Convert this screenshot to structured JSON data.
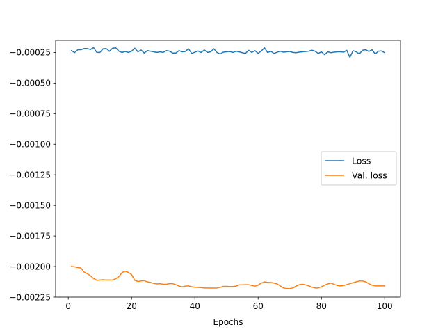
{
  "chart_data": {
    "type": "line",
    "title": "",
    "xlabel": "Epochs",
    "ylabel": "",
    "xlim": [
      -4,
      105
    ],
    "ylim": [
      -0.00225,
      -0.000151
    ],
    "xticks": [
      0,
      20,
      40,
      60,
      80,
      100
    ],
    "xtick_labels": [
      "0",
      "20",
      "40",
      "60",
      "80",
      "100"
    ],
    "yticks": [
      -0.00025,
      -0.0005,
      -0.00075,
      -0.001,
      -0.00125,
      -0.0015,
      -0.00175,
      -0.002,
      -0.00225
    ],
    "ytick_labels": [
      "−0.00025",
      "−0.00050",
      "−0.00075",
      "−0.00100",
      "−0.00125",
      "−0.00150",
      "−0.00175",
      "−0.00200",
      "−0.00225"
    ],
    "grid": false,
    "legend": {
      "placement": "center-right"
    },
    "series": [
      {
        "name": "Loss",
        "color": "#1f77b4",
        "keyframes": [
          [
            1,
            -0.000235
          ],
          [
            2,
            -0.000252
          ],
          [
            3,
            -0.000228
          ],
          [
            4,
            -0.000228
          ],
          [
            5,
            -0.000218
          ],
          [
            6,
            -0.000218
          ],
          [
            7,
            -0.000226
          ],
          [
            8,
            -0.00021
          ],
          [
            9,
            -0.00025
          ],
          [
            10,
            -0.00025
          ],
          [
            11,
            -0.00022
          ],
          [
            12,
            -0.000218
          ],
          [
            13,
            -0.00024
          ],
          [
            14,
            -0.000215
          ],
          [
            15,
            -0.000212
          ],
          [
            16,
            -0.00024
          ],
          [
            17,
            -0.00025
          ],
          [
            18,
            -0.000242
          ],
          [
            19,
            -0.00025
          ],
          [
            20,
            -0.00024
          ],
          [
            21,
            -0.000215
          ],
          [
            22,
            -0.000245
          ],
          [
            23,
            -0.00023
          ],
          [
            24,
            -0.000255
          ],
          [
            25,
            -0.000235
          ],
          [
            26,
            -0.00024
          ],
          [
            27,
            -0.000245
          ],
          [
            28,
            -0.00025
          ],
          [
            29,
            -0.000245
          ],
          [
            30,
            -0.00025
          ],
          [
            31,
            -0.000235
          ],
          [
            32,
            -0.00024
          ],
          [
            33,
            -0.000255
          ],
          [
            34,
            -0.000255
          ],
          [
            35,
            -0.000235
          ],
          [
            36,
            -0.000245
          ],
          [
            37,
            -0.000242
          ],
          [
            38,
            -0.00022
          ],
          [
            39,
            -0.000258
          ],
          [
            40,
            -0.000248
          ],
          [
            41,
            -0.000238
          ],
          [
            42,
            -0.00025
          ],
          [
            43,
            -0.00023
          ],
          [
            44,
            -0.00025
          ],
          [
            45,
            -0.000245
          ],
          [
            46,
            -0.00022
          ],
          [
            47,
            -0.00025
          ],
          [
            48,
            -0.000262
          ],
          [
            49,
            -0.000248
          ],
          [
            50,
            -0.000245
          ],
          [
            51,
            -0.000242
          ],
          [
            52,
            -0.00025
          ],
          [
            53,
            -0.00024
          ],
          [
            54,
            -0.000245
          ],
          [
            55,
            -0.000252
          ],
          [
            56,
            -0.000258
          ],
          [
            57,
            -0.000232
          ],
          [
            58,
            -0.00025
          ],
          [
            59,
            -0.000235
          ],
          [
            60,
            -0.000258
          ],
          [
            61,
            -0.000238
          ],
          [
            62,
            -0.000212
          ],
          [
            63,
            -0.00025
          ],
          [
            64,
            -0.00024
          ],
          [
            65,
            -0.000258
          ],
          [
            66,
            -0.000248
          ],
          [
            67,
            -0.00024
          ],
          [
            68,
            -0.000248
          ],
          [
            69,
            -0.000245
          ],
          [
            70,
            -0.000242
          ],
          [
            71,
            -0.00025
          ],
          [
            72,
            -0.000252
          ],
          [
            73,
            -0.000248
          ],
          [
            74,
            -0.000245
          ],
          [
            75,
            -0.000242
          ],
          [
            76,
            -0.00024
          ],
          [
            77,
            -0.000232
          ],
          [
            78,
            -0.00024
          ],
          [
            79,
            -0.000258
          ],
          [
            80,
            -0.000245
          ],
          [
            81,
            -0.000268
          ],
          [
            82,
            -0.000245
          ],
          [
            83,
            -0.000252
          ],
          [
            84,
            -0.000248
          ],
          [
            85,
            -0.000245
          ],
          [
            86,
            -0.000245
          ],
          [
            87,
            -0.000248
          ],
          [
            88,
            -0.000232
          ],
          [
            89,
            -0.00029
          ],
          [
            90,
            -0.000235
          ],
          [
            91,
            -0.000245
          ],
          [
            92,
            -0.000262
          ],
          [
            93,
            -0.000232
          ],
          [
            94,
            -0.000228
          ],
          [
            95,
            -0.000242
          ],
          [
            96,
            -0.000228
          ],
          [
            97,
            -0.000262
          ],
          [
            98,
            -0.00024
          ],
          [
            99,
            -0.000238
          ],
          [
            100,
            -0.000252
          ]
        ]
      },
      {
        "name": "Val. loss",
        "color": "#ff7f0e",
        "keyframes": [
          [
            1,
            -0.002
          ],
          [
            2,
            -0.002002
          ],
          [
            3,
            -0.002008
          ],
          [
            4,
            -0.002012
          ],
          [
            5,
            -0.002045
          ],
          [
            6,
            -0.002058
          ],
          [
            7,
            -0.002075
          ],
          [
            8,
            -0.002098
          ],
          [
            9,
            -0.002112
          ],
          [
            10,
            -0.00211
          ],
          [
            11,
            -0.002108
          ],
          [
            12,
            -0.00211
          ],
          [
            13,
            -0.00211
          ],
          [
            14,
            -0.00211
          ],
          [
            15,
            -0.0021
          ],
          [
            16,
            -0.002082
          ],
          [
            17,
            -0.00205
          ],
          [
            18,
            -0.002038
          ],
          [
            19,
            -0.002048
          ],
          [
            20,
            -0.002065
          ],
          [
            21,
            -0.002112
          ],
          [
            22,
            -0.002122
          ],
          [
            23,
            -0.002118
          ],
          [
            24,
            -0.002115
          ],
          [
            25,
            -0.002125
          ],
          [
            26,
            -0.00213
          ],
          [
            27,
            -0.002138
          ],
          [
            28,
            -0.002142
          ],
          [
            29,
            -0.00214
          ],
          [
            30,
            -0.002145
          ],
          [
            31,
            -0.002145
          ],
          [
            32,
            -0.00214
          ],
          [
            33,
            -0.00214
          ],
          [
            34,
            -0.002148
          ],
          [
            35,
            -0.00216
          ],
          [
            36,
            -0.002165
          ],
          [
            37,
            -0.00216
          ],
          [
            38,
            -0.002158
          ],
          [
            39,
            -0.002165
          ],
          [
            40,
            -0.002168
          ],
          [
            41,
            -0.00217
          ],
          [
            42,
            -0.002172
          ],
          [
            43,
            -0.002175
          ],
          [
            44,
            -0.002175
          ],
          [
            45,
            -0.002176
          ],
          [
            46,
            -0.002176
          ],
          [
            47,
            -0.002175
          ],
          [
            48,
            -0.00217
          ],
          [
            49,
            -0.002162
          ],
          [
            50,
            -0.002162
          ],
          [
            51,
            -0.002163
          ],
          [
            52,
            -0.002163
          ],
          [
            53,
            -0.00216
          ],
          [
            54,
            -0.00215
          ],
          [
            55,
            -0.00215
          ],
          [
            56,
            -0.002148
          ],
          [
            57,
            -0.002148
          ],
          [
            58,
            -0.002155
          ],
          [
            59,
            -0.00216
          ],
          [
            60,
            -0.002152
          ],
          [
            61,
            -0.002135
          ],
          [
            62,
            -0.002125
          ],
          [
            63,
            -0.00213
          ],
          [
            64,
            -0.00213
          ],
          [
            65,
            -0.002135
          ],
          [
            66,
            -0.002142
          ],
          [
            67,
            -0.002158
          ],
          [
            68,
            -0.002175
          ],
          [
            69,
            -0.00218
          ],
          [
            70,
            -0.00218
          ],
          [
            71,
            -0.002175
          ],
          [
            72,
            -0.00216
          ],
          [
            73,
            -0.002148
          ],
          [
            74,
            -0.002145
          ],
          [
            75,
            -0.00215
          ],
          [
            76,
            -0.002158
          ],
          [
            77,
            -0.002168
          ],
          [
            78,
            -0.002175
          ],
          [
            79,
            -0.002175
          ],
          [
            80,
            -0.002165
          ],
          [
            81,
            -0.002152
          ],
          [
            82,
            -0.002142
          ],
          [
            83,
            -0.002135
          ],
          [
            84,
            -0.002145
          ],
          [
            85,
            -0.002155
          ],
          [
            86,
            -0.002158
          ],
          [
            87,
            -0.002155
          ],
          [
            88,
            -0.002148
          ],
          [
            89,
            -0.00214
          ],
          [
            90,
            -0.002132
          ],
          [
            91,
            -0.002125
          ],
          [
            92,
            -0.002118
          ],
          [
            93,
            -0.002118
          ],
          [
            94,
            -0.002125
          ],
          [
            95,
            -0.00214
          ],
          [
            96,
            -0.002152
          ],
          [
            97,
            -0.002158
          ],
          [
            98,
            -0.002158
          ],
          [
            99,
            -0.002158
          ],
          [
            100,
            -0.002158
          ]
        ]
      }
    ]
  }
}
